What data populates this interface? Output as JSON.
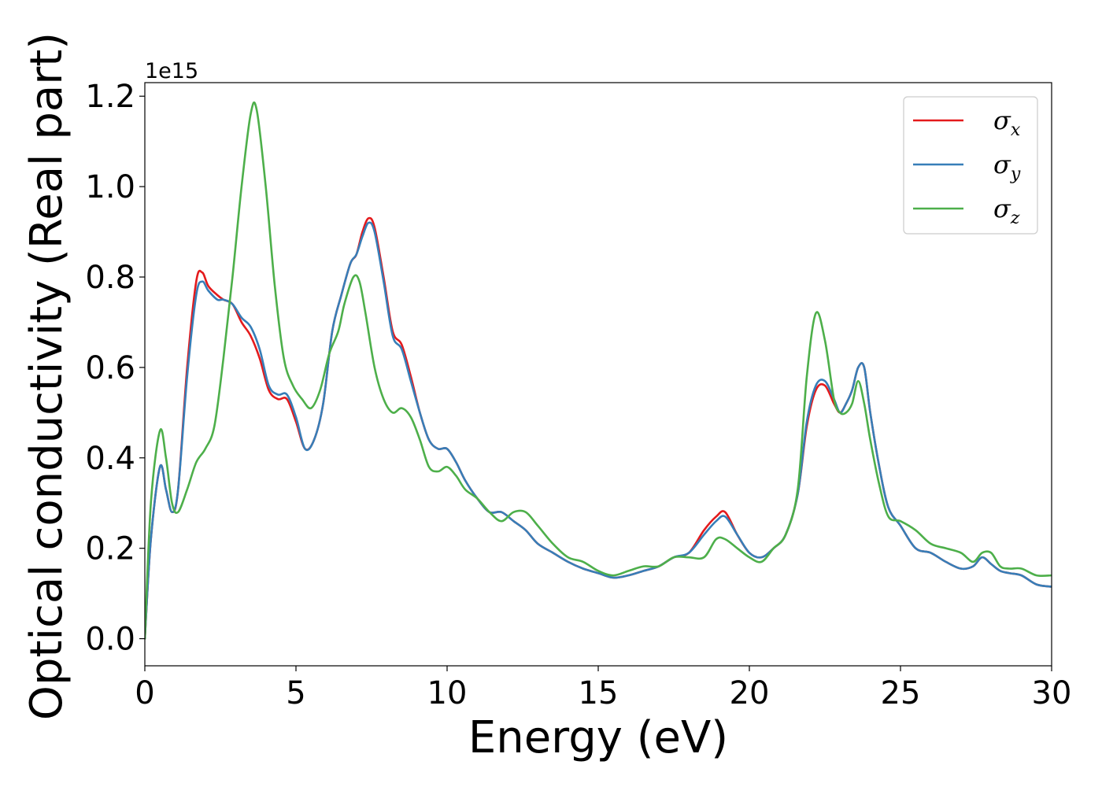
{
  "chart_data": {
    "type": "line",
    "xlabel": "Energy (eV)",
    "ylabel": "Optical conductivity (Real part)",
    "y_offset_label": "1e15",
    "xlim": [
      0,
      30
    ],
    "ylim": [
      -0.06,
      1.23
    ],
    "xticks": [
      0,
      5,
      10,
      15,
      20,
      25,
      30
    ],
    "xtick_labels": [
      "0",
      "5",
      "10",
      "15",
      "20",
      "25",
      "30"
    ],
    "yticks": [
      0.0,
      0.2,
      0.4,
      0.6,
      0.8,
      1.0,
      1.2
    ],
    "ytick_labels": [
      "0.0",
      "0.2",
      "0.4",
      "0.6",
      "0.8",
      "1.0",
      "1.2"
    ],
    "grid": false,
    "legend_position": "top-right",
    "series": [
      {
        "name": "σx",
        "symbol": "σ",
        "subscript": "x",
        "color": "#e41a1c",
        "x": [
          0,
          0.2,
          0.5,
          0.7,
          0.9,
          1.1,
          1.4,
          1.7,
          1.9,
          2.1,
          2.4,
          2.6,
          2.9,
          3.2,
          3.5,
          3.8,
          4.1,
          4.4,
          4.7,
          5.0,
          5.3,
          5.6,
          5.9,
          6.2,
          6.5,
          6.8,
          7.0,
          7.2,
          7.4,
          7.6,
          7.9,
          8.2,
          8.5,
          8.8,
          9.1,
          9.4,
          9.7,
          10.0,
          10.3,
          10.6,
          11.0,
          11.4,
          11.8,
          12.2,
          12.6,
          13.0,
          13.5,
          14.0,
          14.5,
          15.0,
          15.5,
          16.0,
          16.5,
          17.0,
          17.5,
          18.0,
          18.5,
          18.9,
          19.2,
          19.6,
          20.0,
          20.4,
          20.8,
          21.2,
          21.6,
          21.9,
          22.2,
          22.5,
          22.8,
          23.0,
          23.2,
          23.4,
          23.6,
          23.8,
          24.0,
          24.3,
          24.6,
          25.0,
          25.5,
          26.0,
          26.5,
          27.0,
          27.4,
          27.7,
          28.0,
          28.3,
          28.6,
          29.0,
          29.5,
          30.0
        ],
        "y": [
          0.0,
          0.22,
          0.38,
          0.33,
          0.28,
          0.33,
          0.6,
          0.79,
          0.81,
          0.78,
          0.76,
          0.75,
          0.74,
          0.7,
          0.67,
          0.62,
          0.55,
          0.53,
          0.53,
          0.48,
          0.42,
          0.44,
          0.52,
          0.68,
          0.76,
          0.83,
          0.85,
          0.9,
          0.93,
          0.91,
          0.8,
          0.68,
          0.65,
          0.58,
          0.5,
          0.44,
          0.42,
          0.42,
          0.39,
          0.35,
          0.31,
          0.28,
          0.28,
          0.26,
          0.24,
          0.21,
          0.19,
          0.17,
          0.155,
          0.145,
          0.135,
          0.14,
          0.15,
          0.16,
          0.18,
          0.19,
          0.24,
          0.27,
          0.28,
          0.23,
          0.19,
          0.18,
          0.2,
          0.23,
          0.32,
          0.47,
          0.55,
          0.56,
          0.52,
          0.5,
          0.52,
          0.55,
          0.6,
          0.6,
          0.5,
          0.38,
          0.29,
          0.25,
          0.2,
          0.19,
          0.17,
          0.155,
          0.16,
          0.18,
          0.165,
          0.15,
          0.145,
          0.14,
          0.12,
          0.115
        ]
      },
      {
        "name": "σy",
        "symbol": "σ",
        "subscript": "y",
        "color": "#377eb8",
        "x": [
          0,
          0.2,
          0.5,
          0.7,
          0.9,
          1.1,
          1.4,
          1.7,
          1.9,
          2.1,
          2.4,
          2.6,
          2.9,
          3.2,
          3.5,
          3.8,
          4.1,
          4.4,
          4.7,
          5.0,
          5.3,
          5.6,
          5.9,
          6.2,
          6.5,
          6.8,
          7.0,
          7.2,
          7.4,
          7.6,
          7.9,
          8.2,
          8.5,
          8.8,
          9.1,
          9.4,
          9.7,
          10.0,
          10.3,
          10.6,
          11.0,
          11.4,
          11.8,
          12.2,
          12.6,
          13.0,
          13.5,
          14.0,
          14.5,
          15.0,
          15.5,
          16.0,
          16.5,
          17.0,
          17.5,
          18.0,
          18.5,
          18.9,
          19.2,
          19.6,
          20.0,
          20.4,
          20.8,
          21.2,
          21.6,
          21.9,
          22.2,
          22.5,
          22.8,
          23.0,
          23.2,
          23.4,
          23.6,
          23.8,
          24.0,
          24.3,
          24.6,
          25.0,
          25.5,
          26.0,
          26.5,
          27.0,
          27.4,
          27.7,
          28.0,
          28.3,
          28.6,
          29.0,
          29.5,
          30.0
        ],
        "y": [
          0.0,
          0.22,
          0.38,
          0.33,
          0.28,
          0.33,
          0.58,
          0.76,
          0.79,
          0.77,
          0.75,
          0.75,
          0.74,
          0.71,
          0.69,
          0.64,
          0.56,
          0.54,
          0.54,
          0.49,
          0.42,
          0.44,
          0.52,
          0.68,
          0.76,
          0.83,
          0.85,
          0.89,
          0.92,
          0.9,
          0.79,
          0.67,
          0.64,
          0.57,
          0.5,
          0.44,
          0.42,
          0.42,
          0.39,
          0.35,
          0.31,
          0.28,
          0.28,
          0.26,
          0.24,
          0.21,
          0.19,
          0.17,
          0.155,
          0.145,
          0.135,
          0.14,
          0.15,
          0.16,
          0.18,
          0.19,
          0.23,
          0.26,
          0.27,
          0.23,
          0.19,
          0.18,
          0.2,
          0.23,
          0.32,
          0.48,
          0.56,
          0.57,
          0.53,
          0.5,
          0.52,
          0.55,
          0.6,
          0.6,
          0.5,
          0.38,
          0.29,
          0.25,
          0.2,
          0.19,
          0.17,
          0.155,
          0.16,
          0.18,
          0.165,
          0.15,
          0.145,
          0.14,
          0.12,
          0.115
        ]
      },
      {
        "name": "σz",
        "symbol": "σ",
        "subscript": "z",
        "color": "#4daf4a",
        "x": [
          0,
          0.2,
          0.5,
          0.7,
          0.9,
          1.1,
          1.4,
          1.7,
          2.0,
          2.3,
          2.6,
          2.9,
          3.2,
          3.5,
          3.7,
          4.0,
          4.3,
          4.6,
          4.9,
          5.2,
          5.5,
          5.8,
          6.1,
          6.4,
          6.6,
          6.9,
          7.1,
          7.3,
          7.6,
          7.9,
          8.2,
          8.5,
          8.8,
          9.1,
          9.4,
          9.7,
          10.0,
          10.3,
          10.6,
          11.0,
          11.4,
          11.8,
          12.2,
          12.6,
          13.0,
          13.5,
          14.0,
          14.5,
          15.0,
          15.5,
          16.0,
          16.5,
          17.0,
          17.5,
          18.0,
          18.5,
          18.9,
          19.2,
          19.6,
          20.0,
          20.4,
          20.8,
          21.2,
          21.6,
          21.9,
          22.2,
          22.5,
          22.8,
          23.0,
          23.2,
          23.4,
          23.6,
          23.8,
          24.0,
          24.3,
          24.6,
          25.0,
          25.5,
          26.0,
          26.5,
          27.0,
          27.4,
          27.7,
          28.0,
          28.3,
          28.6,
          29.0,
          29.5,
          30.0
        ],
        "y": [
          0.0,
          0.3,
          0.46,
          0.4,
          0.3,
          0.28,
          0.33,
          0.39,
          0.42,
          0.47,
          0.62,
          0.8,
          1.0,
          1.16,
          1.17,
          1.0,
          0.78,
          0.62,
          0.56,
          0.53,
          0.51,
          0.55,
          0.63,
          0.68,
          0.74,
          0.8,
          0.79,
          0.72,
          0.6,
          0.53,
          0.5,
          0.51,
          0.49,
          0.44,
          0.38,
          0.37,
          0.38,
          0.36,
          0.33,
          0.31,
          0.28,
          0.26,
          0.28,
          0.28,
          0.25,
          0.21,
          0.18,
          0.17,
          0.15,
          0.14,
          0.15,
          0.16,
          0.16,
          0.18,
          0.18,
          0.18,
          0.22,
          0.22,
          0.2,
          0.18,
          0.17,
          0.2,
          0.23,
          0.33,
          0.58,
          0.72,
          0.66,
          0.53,
          0.5,
          0.5,
          0.52,
          0.57,
          0.52,
          0.44,
          0.34,
          0.27,
          0.26,
          0.24,
          0.21,
          0.2,
          0.19,
          0.17,
          0.19,
          0.19,
          0.16,
          0.155,
          0.155,
          0.14,
          0.14
        ]
      }
    ]
  }
}
